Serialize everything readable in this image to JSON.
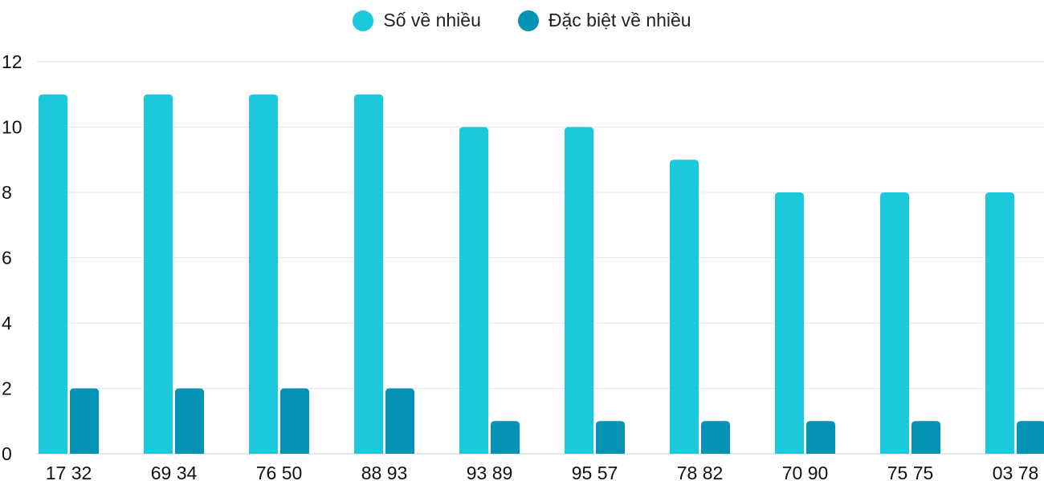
{
  "chart_data": {
    "type": "bar",
    "categories": [
      "17 32",
      "69 34",
      "76 50",
      "88 93",
      "93 89",
      "95 57",
      "78 82",
      "70 90",
      "75 75",
      "03 78"
    ],
    "series": [
      {
        "name": "Số về nhiều",
        "color": "#1bc8dc",
        "values": [
          11,
          11,
          11,
          11,
          10,
          10,
          9,
          8,
          8,
          8
        ]
      },
      {
        "name": "Đặc biệt về nhiều",
        "color": "#0492b5",
        "values": [
          2,
          2,
          2,
          2,
          1,
          1,
          1,
          1,
          1,
          1
        ]
      }
    ],
    "ylim": [
      0,
      12
    ],
    "yticks": [
      0,
      2,
      4,
      6,
      8,
      10,
      12
    ],
    "grid": true,
    "legend": "top-center",
    "title": "",
    "xlabel": "",
    "ylabel": ""
  }
}
